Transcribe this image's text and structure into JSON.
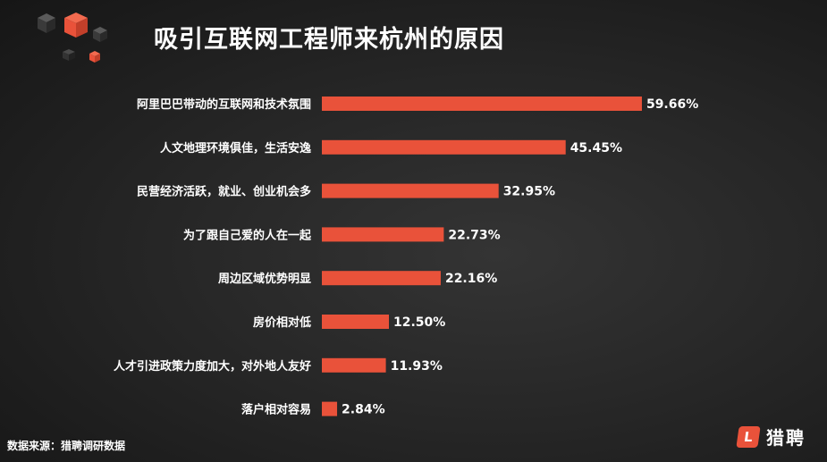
{
  "header": {
    "title": "吸引互联网工程师来杭州的原因"
  },
  "footer": {
    "source": "数据来源：猎聘调研数据",
    "brand_name": "猎聘",
    "brand_icon": "L"
  },
  "colors": {
    "bar": "#e9523a",
    "cube_accent": "#e9523a",
    "cube_dark": "#4a4a4a"
  },
  "chart_data": {
    "type": "bar",
    "orientation": "horizontal",
    "title": "吸引互联网工程师来杭州的原因",
    "categories": [
      "阿里巴巴带动的互联网和技术氛围",
      "人文地理环境俱佳，生活安逸",
      "民营经济活跃，就业、创业机会多",
      "为了跟自己爱的人在一起",
      "周边区域优势明显",
      "房价相对低",
      "人才引进政策力度加大，对外地人友好",
      "落户相对容易"
    ],
    "values": [
      59.66,
      45.45,
      32.95,
      22.73,
      22.16,
      12.5,
      11.93,
      2.84
    ],
    "value_labels": [
      "59.66%",
      "45.45%",
      "32.95%",
      "22.73%",
      "22.16%",
      "12.50%",
      "11.93%",
      "2.84%"
    ],
    "unit": "%",
    "grid": false,
    "legend": "none"
  }
}
